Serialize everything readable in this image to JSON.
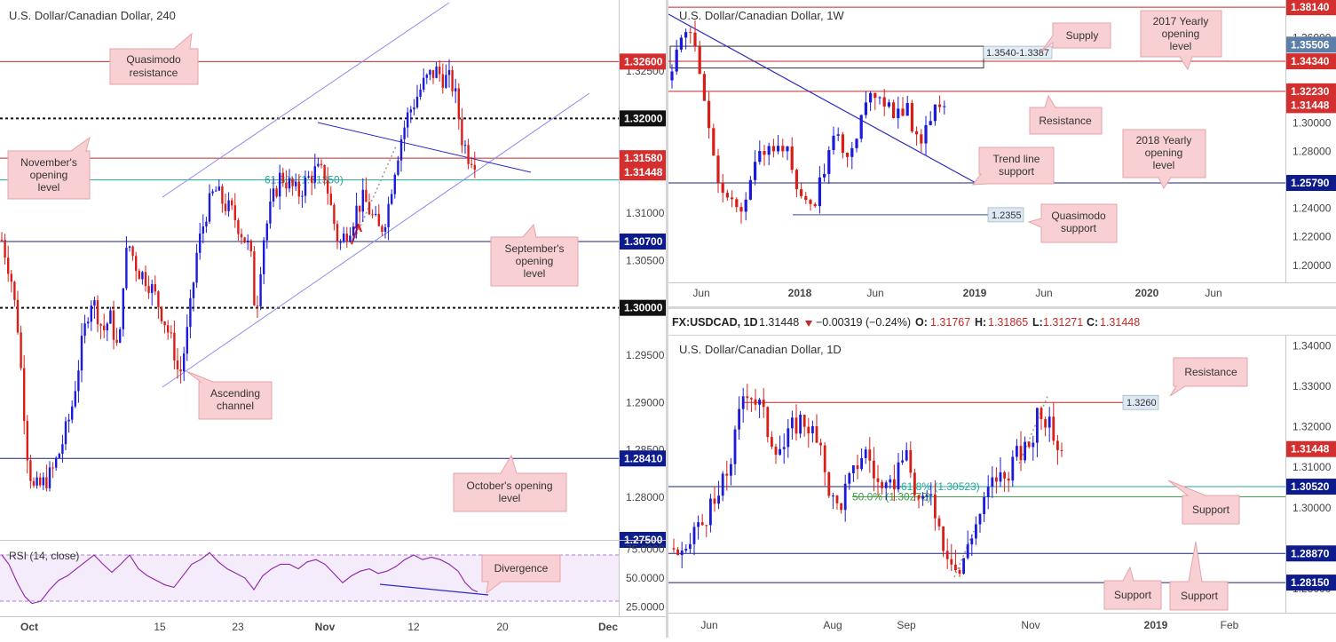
{
  "colors": {
    "up": "#1a1adb",
    "down": "#d91e18",
    "red_line": "#c62828",
    "blue_line": "#1a237e",
    "channel": "#7b7bf0",
    "fib": "#26a69a",
    "fib_green": "#43a047",
    "rsi_line": "#8e24aa",
    "rsi_bg": "#f4ecfb",
    "callout_bg": "#f8cfd3",
    "callout_border": "#e6a3a9",
    "price_red": "#d32f2f",
    "price_blue": "#0d1b8c",
    "price_dark": "#222222",
    "price_gray": "#5b7fa8",
    "label_box": "#dde8f5"
  },
  "chart_data": [
    {
      "id": "h4",
      "type": "candlestick",
      "title": "U.S. Dollar/Canadian Dollar, 240",
      "ylim": [
        1.2755,
        1.3325
      ],
      "x_ticks": [
        {
          "label": "Oct",
          "pos": 33
        },
        {
          "label": "15",
          "pos": 180
        },
        {
          "label": "23",
          "pos": 268
        },
        {
          "label": "Nov",
          "pos": 366
        },
        {
          "label": "12",
          "pos": 466
        },
        {
          "label": "20",
          "pos": 566
        },
        {
          "label": "Dec",
          "pos": 685
        }
      ],
      "y_ticks": [
        "1.32500",
        "1.31000",
        "1.30500",
        "1.29500",
        "1.29000",
        "1.28500",
        "1.28000"
      ],
      "y_tick_values": [
        1.325,
        1.31,
        1.305,
        1.295,
        1.29,
        1.285,
        1.28
      ],
      "levels": [
        {
          "value": 1.326,
          "label": "1.32600",
          "style": "red"
        },
        {
          "value": 1.32,
          "label": "1.32000",
          "style": "black-dotted"
        },
        {
          "value": 1.3158,
          "label": "1.31580",
          "style": "red"
        },
        {
          "value": 1.31448,
          "label": "1.31448",
          "style": "price"
        },
        {
          "value": 1.307,
          "label": "1.30700",
          "style": "blue"
        },
        {
          "value": 1.3,
          "label": "1.30000",
          "style": "black-dotted"
        },
        {
          "value": 1.2841,
          "label": "1.28410",
          "style": "blue"
        },
        {
          "value": 1.2755,
          "label": "1.27500",
          "style": "clipped"
        }
      ],
      "fib_label": "61.8% (1.31350)",
      "fib_value": 1.3135,
      "path": [
        [
          2,
          1.3072
        ],
        [
          12,
          1.3035
        ],
        [
          20,
          1.298
        ],
        [
          26,
          1.2905
        ],
        [
          31,
          1.2845
        ],
        [
          37,
          1.2808
        ],
        [
          46,
          1.2812
        ],
        [
          58,
          1.2825
        ],
        [
          68,
          1.285
        ],
        [
          80,
          1.289
        ],
        [
          92,
          1.296
        ],
        [
          102,
          1.301
        ],
        [
          108,
          1.3
        ],
        [
          116,
          1.2975
        ],
        [
          124,
          1.299
        ],
        [
          134,
          1.295
        ],
        [
          140,
          1.305
        ],
        [
          146,
          1.3065
        ],
        [
          155,
          1.304
        ],
        [
          166,
          1.303
        ],
        [
          176,
          1.301
        ],
        [
          186,
          1.2985
        ],
        [
          196,
          1.2955
        ],
        [
          202,
          1.2925
        ],
        [
          212,
          1.298
        ],
        [
          222,
          1.306
        ],
        [
          232,
          1.31
        ],
        [
          242,
          1.3125
        ],
        [
          252,
          1.311
        ],
        [
          262,
          1.31
        ],
        [
          272,
          1.308
        ],
        [
          282,
          1.306
        ],
        [
          288,
          1.299
        ],
        [
          296,
          1.307
        ],
        [
          306,
          1.311
        ],
        [
          316,
          1.314
        ],
        [
          326,
          1.313
        ],
        [
          336,
          1.312
        ],
        [
          346,
          1.3135
        ],
        [
          356,
          1.3145
        ],
        [
          366,
          1.314
        ],
        [
          374,
          1.31
        ],
        [
          382,
          1.3065
        ],
        [
          390,
          1.308
        ],
        [
          396,
          1.309
        ],
        [
          402,
          1.3105
        ],
        [
          410,
          1.3115
        ],
        [
          420,
          1.3095
        ],
        [
          428,
          1.308
        ],
        [
          436,
          1.31
        ],
        [
          444,
          1.3145
        ],
        [
          452,
          1.318
        ],
        [
          460,
          1.3205
        ],
        [
          468,
          1.322
        ],
        [
          476,
          1.3235
        ],
        [
          484,
          1.3245
        ],
        [
          492,
          1.325
        ],
        [
          500,
          1.3242
        ],
        [
          508,
          1.324
        ],
        [
          514,
          1.322
        ],
        [
          520,
          1.318
        ],
        [
          528,
          1.316
        ],
        [
          534,
          1.316
        ],
        [
          538,
          1.3145
        ]
      ],
      "rsi": {
        "label": "RSI (14, close)",
        "ylim": [
          20,
          80
        ],
        "ticks": [
          "75.0000",
          "50.0000",
          "25.0000"
        ],
        "tick_values": [
          75,
          50,
          25
        ],
        "bands": [
          70,
          30
        ],
        "values": [
          [
            2,
            70
          ],
          [
            10,
            62
          ],
          [
            20,
            45
          ],
          [
            28,
            34
          ],
          [
            36,
            28
          ],
          [
            46,
            30
          ],
          [
            56,
            40
          ],
          [
            66,
            48
          ],
          [
            76,
            52
          ],
          [
            86,
            58
          ],
          [
            96,
            64
          ],
          [
            106,
            70
          ],
          [
            116,
            62
          ],
          [
            126,
            55
          ],
          [
            136,
            62
          ],
          [
            146,
            70
          ],
          [
            156,
            58
          ],
          [
            166,
            52
          ],
          [
            176,
            48
          ],
          [
            186,
            44
          ],
          [
            196,
            42
          ],
          [
            206,
            52
          ],
          [
            216,
            62
          ],
          [
            226,
            66
          ],
          [
            236,
            72
          ],
          [
            246,
            64
          ],
          [
            256,
            58
          ],
          [
            266,
            54
          ],
          [
            276,
            50
          ],
          [
            286,
            40
          ],
          [
            296,
            52
          ],
          [
            306,
            58
          ],
          [
            316,
            62
          ],
          [
            326,
            62
          ],
          [
            336,
            58
          ],
          [
            346,
            64
          ],
          [
            356,
            66
          ],
          [
            366,
            62
          ],
          [
            376,
            54
          ],
          [
            386,
            46
          ],
          [
            396,
            52
          ],
          [
            406,
            56
          ],
          [
            416,
            58
          ],
          [
            426,
            54
          ],
          [
            436,
            56
          ],
          [
            446,
            60
          ],
          [
            456,
            66
          ],
          [
            466,
            70
          ],
          [
            476,
            66
          ],
          [
            486,
            68
          ],
          [
            496,
            66
          ],
          [
            506,
            62
          ],
          [
            516,
            56
          ],
          [
            524,
            46
          ],
          [
            532,
            40
          ],
          [
            538,
            38
          ]
        ]
      },
      "annotations": [
        "Quasimodo resistance",
        "November's opening level",
        "September's opening level",
        "Ascending channel",
        "October's opening level",
        "Divergence"
      ]
    },
    {
      "id": "weekly",
      "type": "candlestick",
      "title": "U.S. Dollar/Canadian Dollar, 1W",
      "ylim": [
        1.188,
        1.3865
      ],
      "x_ticks": [
        {
          "label": "Jun",
          "pos": 37
        },
        {
          "label": "2018",
          "pos": 148
        },
        {
          "label": "Jun",
          "pos": 233
        },
        {
          "label": "2019",
          "pos": 345
        },
        {
          "label": "Jun",
          "pos": 423
        },
        {
          "label": "2020",
          "pos": 539
        },
        {
          "label": "Jun",
          "pos": 614
        }
      ],
      "y_ticks": [
        "1.36000",
        "1.30000",
        "1.28000",
        "1.24000",
        "1.22000",
        "1.20000"
      ],
      "y_tick_values": [
        1.36,
        1.3,
        1.28,
        1.24,
        1.22,
        1.2
      ],
      "levels": [
        {
          "value": 1.3814,
          "label": "1.38140",
          "style": "red"
        },
        {
          "value": 1.3551,
          "label": "1.35506",
          "style": "gray"
        },
        {
          "value": 1.3434,
          "label": "1.34340",
          "style": "red"
        },
        {
          "value": 1.3223,
          "label": "1.32230",
          "style": "red"
        },
        {
          "value": 1.31448,
          "label": "1.31448",
          "style": "price"
        },
        {
          "value": 1.2579,
          "label": "1.25790",
          "style": "blue"
        },
        {
          "value": 1.2355,
          "label": "1.2355",
          "style": "short-blue"
        }
      ],
      "supply_zone": {
        "top": 1.354,
        "bottom": 1.3387,
        "label": "1.3540-1.3387"
      },
      "path": [
        [
          4,
          1.33
        ],
        [
          10,
          1.35
        ],
        [
          16,
          1.365
        ],
        [
          22,
          1.37
        ],
        [
          28,
          1.355
        ],
        [
          36,
          1.33
        ],
        [
          44,
          1.31
        ],
        [
          52,
          1.27
        ],
        [
          60,
          1.255
        ],
        [
          68,
          1.25
        ],
        [
          76,
          1.24
        ],
        [
          84,
          1.23
        ],
        [
          90,
          1.255
        ],
        [
          98,
          1.27
        ],
        [
          106,
          1.28
        ],
        [
          114,
          1.29
        ],
        [
          122,
          1.28
        ],
        [
          130,
          1.285
        ],
        [
          140,
          1.265
        ],
        [
          148,
          1.25
        ],
        [
          156,
          1.24
        ],
        [
          164,
          1.245
        ],
        [
          172,
          1.26
        ],
        [
          180,
          1.275
        ],
        [
          188,
          1.29
        ],
        [
          196,
          1.285
        ],
        [
          204,
          1.28
        ],
        [
          212,
          1.295
        ],
        [
          220,
          1.305
        ],
        [
          228,
          1.315
        ],
        [
          236,
          1.325
        ],
        [
          244,
          1.315
        ],
        [
          252,
          1.31
        ],
        [
          260,
          1.305
        ],
        [
          268,
          1.31
        ],
        [
          276,
          1.295
        ],
        [
          284,
          1.29
        ],
        [
          292,
          1.3
        ],
        [
          300,
          1.31
        ],
        [
          308,
          1.318
        ],
        [
          314,
          1.315
        ]
      ],
      "annotations": [
        "Supply",
        "2017 Yearly opening level",
        "Resistance",
        "Trend line support",
        "2018 Yearly opening level",
        "Quasimodo support"
      ]
    },
    {
      "id": "daily",
      "type": "candlestick",
      "title": "U.S. Dollar/Canadian Dollar, 1D",
      "header": {
        "symbol": "FX:USDCAD, 1D",
        "last": "1.31448",
        "change": "−0.00319 (−0.24%)",
        "o_label": "O:",
        "o": "1.31767",
        "h_label": "H:",
        "h": "1.31865",
        "l_label": "L:",
        "l": "1.31271",
        "c_label": "C:",
        "c": "1.31448"
      },
      "ylim": [
        1.2745,
        1.3425
      ],
      "x_ticks": [
        {
          "label": "Jun",
          "pos": 46
        },
        {
          "label": "Aug",
          "pos": 185
        },
        {
          "label": "Sep",
          "pos": 268
        },
        {
          "label": "Nov",
          "pos": 408
        },
        {
          "label": "2019",
          "pos": 549
        },
        {
          "label": "Feb",
          "pos": 632
        }
      ],
      "y_ticks": [
        "1.34000",
        "1.33000",
        "1.32000",
        "1.31000",
        "1.30000",
        "1.28000"
      ],
      "y_tick_values": [
        1.34,
        1.33,
        1.32,
        1.31,
        1.3,
        1.28
      ],
      "levels": [
        {
          "value": 1.326,
          "label": "1.3260",
          "style": "red-labelbox"
        },
        {
          "value": 1.31448,
          "label": "1.31448",
          "style": "price"
        },
        {
          "value": 1.3052,
          "label": "1.30520",
          "style": "blue"
        },
        {
          "value": 1.2887,
          "label": "1.28870",
          "style": "blue"
        },
        {
          "value": 1.2815,
          "label": "1.28150",
          "style": "blue"
        }
      ],
      "fib_labels": [
        "61.8% (1.30523)",
        "50.0% (1.30272)"
      ],
      "fib_values": [
        1.3052,
        1.3027
      ],
      "path": [
        [
          6,
          1.29
        ],
        [
          14,
          1.288
        ],
        [
          20,
          1.287
        ],
        [
          28,
          1.295
        ],
        [
          36,
          1.295
        ],
        [
          44,
          1.299
        ],
        [
          52,
          1.3
        ],
        [
          60,
          1.305
        ],
        [
          68,
          1.31
        ],
        [
          76,
          1.318
        ],
        [
          84,
          1.328
        ],
        [
          90,
          1.33
        ],
        [
          96,
          1.327
        ],
        [
          104,
          1.325
        ],
        [
          112,
          1.319
        ],
        [
          120,
          1.316
        ],
        [
          130,
          1.315
        ],
        [
          140,
          1.32
        ],
        [
          150,
          1.322
        ],
        [
          160,
          1.32
        ],
        [
          168,
          1.315
        ],
        [
          176,
          1.31
        ],
        [
          184,
          1.302
        ],
        [
          192,
          1.3
        ],
        [
          200,
          1.305
        ],
        [
          208,
          1.308
        ],
        [
          216,
          1.313
        ],
        [
          224,
          1.314
        ],
        [
          232,
          1.308
        ],
        [
          240,
          1.304
        ],
        [
          248,
          1.303
        ],
        [
          256,
          1.308
        ],
        [
          264,
          1.314
        ],
        [
          272,
          1.309
        ],
        [
          280,
          1.302
        ],
        [
          288,
          1.3
        ],
        [
          296,
          1.305
        ],
        [
          304,
          1.296
        ],
        [
          312,
          1.29
        ],
        [
          320,
          1.288
        ],
        [
          326,
          1.283
        ],
        [
          332,
          1.286
        ],
        [
          338,
          1.292
        ],
        [
          346,
          1.296
        ],
        [
          354,
          1.3
        ],
        [
          362,
          1.305
        ],
        [
          370,
          1.308
        ],
        [
          378,
          1.307
        ],
        [
          386,
          1.311
        ],
        [
          394,
          1.313
        ],
        [
          402,
          1.314
        ],
        [
          410,
          1.317
        ],
        [
          416,
          1.325
        ],
        [
          422,
          1.324
        ],
        [
          428,
          1.32
        ],
        [
          434,
          1.318
        ],
        [
          440,
          1.315
        ],
        [
          446,
          1.3145
        ]
      ],
      "annotations": [
        "Resistance",
        "Support",
        "Support",
        "Support"
      ]
    }
  ]
}
